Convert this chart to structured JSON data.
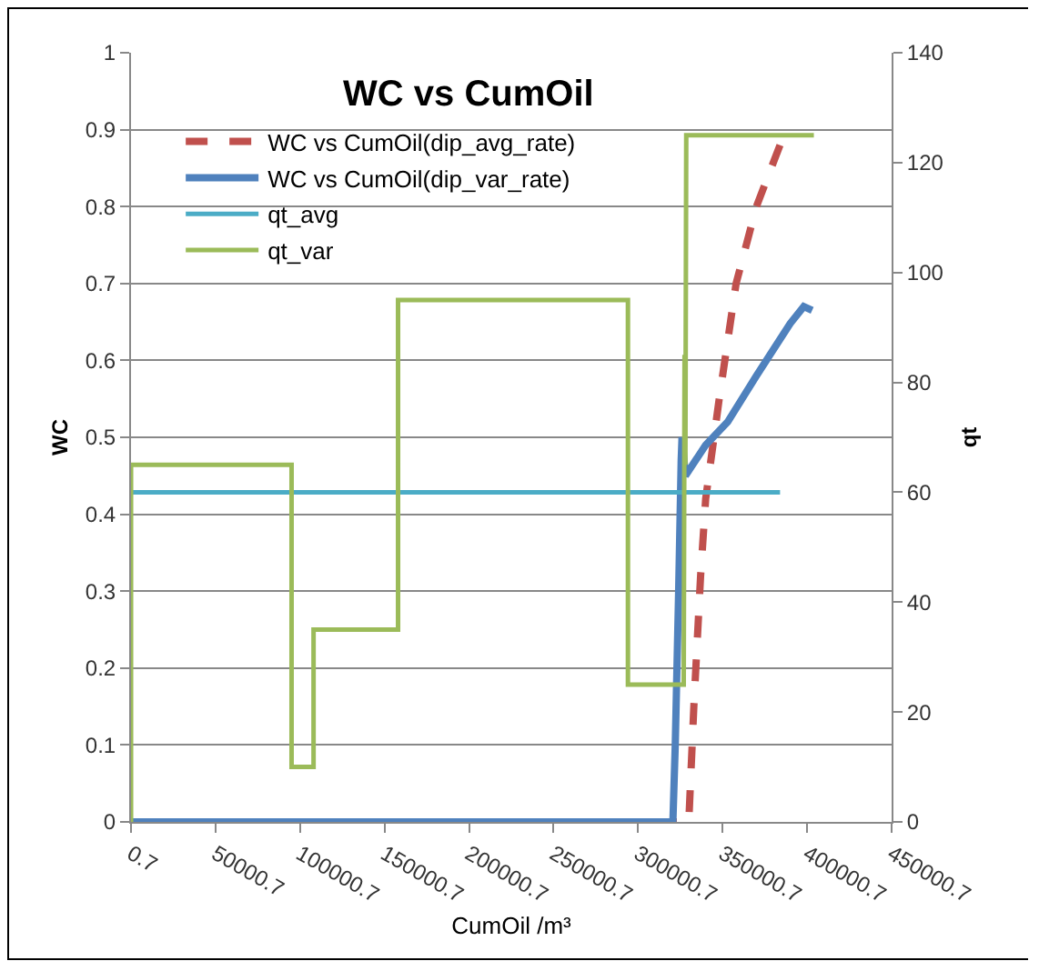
{
  "chart_data": {
    "type": "line",
    "title": "WC vs CumOil",
    "xlabel": "CumOil /m³",
    "ylabel": "WC",
    "y2label": "qt",
    "xlim": [
      0.7,
      450000.7
    ],
    "xticks": [
      0.7,
      50000.7,
      100000.7,
      150000.7,
      200000.7,
      250000.7,
      300000.7,
      350000.7,
      400000.7,
      450000.7
    ],
    "ylim": [
      0,
      1
    ],
    "yticks": [
      0,
      0.1,
      0.2,
      0.3,
      0.4,
      0.5,
      0.6,
      0.7,
      0.8,
      0.9,
      1
    ],
    "y2lim": [
      0,
      140
    ],
    "y2ticks": [
      0,
      20,
      40,
      60,
      80,
      100,
      120,
      140
    ],
    "grid": "y",
    "legend": "top left",
    "marker": "none",
    "series": [
      {
        "name": "WC vs CumOil(dip_avg_rate)",
        "color": "#c0504d",
        "line_style": "dashed",
        "x": [
          0.7,
          330000,
          333000,
          337000,
          340000,
          348000,
          358000,
          370000,
          384000
        ],
        "values": [
          0,
          0,
          0.15,
          0.32,
          0.42,
          0.55,
          0.7,
          0.8,
          0.88
        ]
      },
      {
        "name": "WC vs CumOil(dip_var_rate)",
        "color": "#4f81bd",
        "line_style": "solid",
        "x": [
          0.7,
          320600,
          322000,
          324000,
          325500,
          326000,
          328000,
          331000,
          340000,
          353000,
          370000,
          390000,
          398000,
          403000
        ],
        "values": [
          0,
          0,
          0.1,
          0.3,
          0.47,
          0.5,
          0.45,
          0.46,
          0.49,
          0.52,
          0.58,
          0.648,
          0.67,
          0.665
        ]
      },
      {
        "name": "qt_avg",
        "color": "#4bacc6",
        "line_style": "solid",
        "axis": "y2",
        "x": [
          0.7,
          384000
        ],
        "values": [
          60,
          60
        ]
      },
      {
        "name": "qt_var",
        "color": "#9bbb59",
        "line_style": "solid",
        "axis": "y2",
        "x": [
          0.7,
          0.7,
          95000,
          95000,
          108000,
          108000,
          158000,
          158000,
          294000,
          294000,
          327000,
          327500,
          328000,
          328500,
          404000
        ],
        "values": [
          0,
          65,
          65,
          10,
          10,
          35,
          35,
          95,
          95,
          25,
          25,
          85,
          65,
          125,
          125
        ]
      }
    ]
  }
}
